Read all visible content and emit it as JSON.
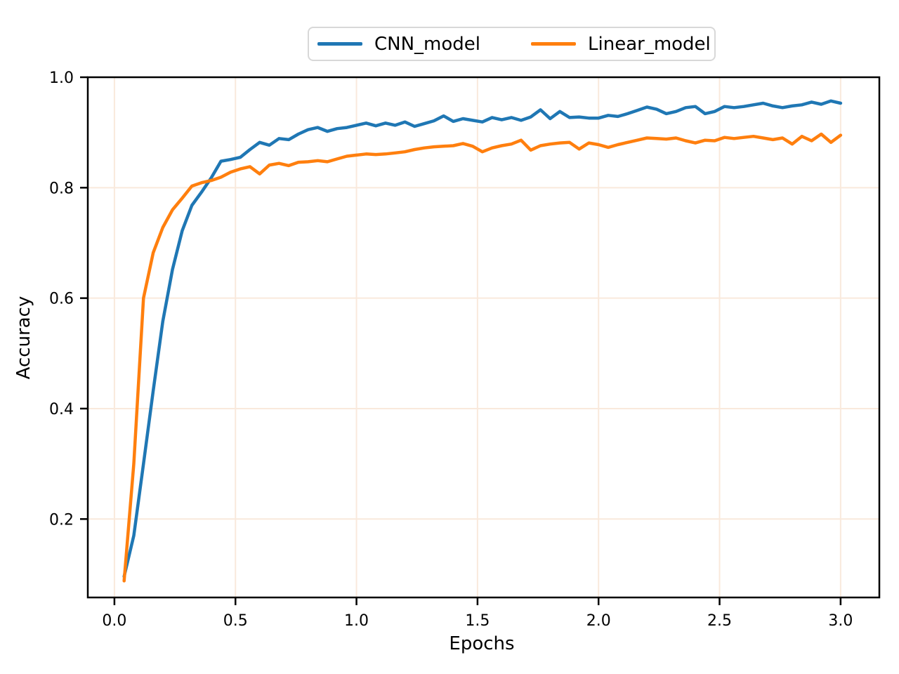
{
  "chart_data": {
    "type": "line",
    "title": "",
    "xlabel": "Epochs",
    "ylabel": "Accuracy",
    "xlim": [
      -0.11,
      3.16
    ],
    "ylim": [
      0.058,
      1.0
    ],
    "xticks": [
      0.0,
      0.5,
      1.0,
      1.5,
      2.0,
      2.5,
      3.0
    ],
    "xtick_labels": [
      "0.0",
      "0.5",
      "1.0",
      "1.5",
      "2.0",
      "2.5",
      "3.0"
    ],
    "yticks": [
      0.2,
      0.4,
      0.6,
      0.8,
      1.0
    ],
    "ytick_labels": [
      "0.2",
      "0.4",
      "0.6",
      "0.8",
      "1.0"
    ],
    "grid": true,
    "grid_color": "#f9e9dc",
    "spine_color": "#000000",
    "legend_position": "top-center-outside",
    "x": [
      0.04,
      0.08,
      0.12,
      0.16,
      0.2,
      0.24,
      0.28,
      0.32,
      0.36,
      0.4,
      0.44,
      0.48,
      0.52,
      0.56,
      0.6,
      0.64,
      0.68,
      0.72,
      0.76,
      0.8,
      0.84,
      0.88,
      0.92,
      0.96,
      1.0,
      1.04,
      1.08,
      1.12,
      1.16,
      1.2,
      1.24,
      1.28,
      1.32,
      1.36,
      1.4,
      1.44,
      1.48,
      1.52,
      1.56,
      1.6,
      1.64,
      1.68,
      1.72,
      1.76,
      1.8,
      1.84,
      1.88,
      1.92,
      1.96,
      2.0,
      2.04,
      2.08,
      2.12,
      2.16,
      2.2,
      2.24,
      2.28,
      2.32,
      2.36,
      2.4,
      2.44,
      2.48,
      2.52,
      2.56,
      2.6,
      2.64,
      2.68,
      2.72,
      2.76,
      2.8,
      2.84,
      2.88,
      2.92,
      2.96,
      3.0
    ],
    "series": [
      {
        "name": "CNN_model",
        "color": "#1f77b4",
        "values": [
          0.096,
          0.17,
          0.3,
          0.432,
          0.558,
          0.652,
          0.722,
          0.768,
          0.792,
          0.818,
          0.848,
          0.851,
          0.855,
          0.869,
          0.882,
          0.877,
          0.889,
          0.887,
          0.897,
          0.905,
          0.909,
          0.902,
          0.907,
          0.909,
          0.913,
          0.917,
          0.912,
          0.917,
          0.913,
          0.919,
          0.911,
          0.916,
          0.921,
          0.93,
          0.92,
          0.925,
          0.922,
          0.919,
          0.927,
          0.923,
          0.927,
          0.922,
          0.928,
          0.941,
          0.925,
          0.938,
          0.927,
          0.928,
          0.926,
          0.926,
          0.931,
          0.929,
          0.934,
          0.94,
          0.946,
          0.942,
          0.934,
          0.938,
          0.945,
          0.947,
          0.934,
          0.938,
          0.947,
          0.945,
          0.947,
          0.95,
          0.953,
          0.948,
          0.945,
          0.948,
          0.95,
          0.955,
          0.951,
          0.957,
          0.953
        ]
      },
      {
        "name": "Linear_model",
        "color": "#ff7f0e",
        "values": [
          0.088,
          0.3,
          0.6,
          0.682,
          0.728,
          0.76,
          0.781,
          0.803,
          0.809,
          0.813,
          0.819,
          0.828,
          0.834,
          0.838,
          0.825,
          0.841,
          0.844,
          0.84,
          0.846,
          0.847,
          0.849,
          0.847,
          0.852,
          0.857,
          0.859,
          0.861,
          0.86,
          0.861,
          0.863,
          0.865,
          0.869,
          0.872,
          0.874,
          0.875,
          0.876,
          0.88,
          0.875,
          0.865,
          0.872,
          0.876,
          0.879,
          0.886,
          0.868,
          0.876,
          0.879,
          0.881,
          0.882,
          0.87,
          0.881,
          0.878,
          0.873,
          0.878,
          0.882,
          0.886,
          0.89,
          0.889,
          0.888,
          0.89,
          0.885,
          0.881,
          0.886,
          0.885,
          0.891,
          0.889,
          0.891,
          0.893,
          0.89,
          0.887,
          0.89,
          0.879,
          0.893,
          0.885,
          0.897,
          0.882,
          0.895
        ]
      }
    ]
  }
}
